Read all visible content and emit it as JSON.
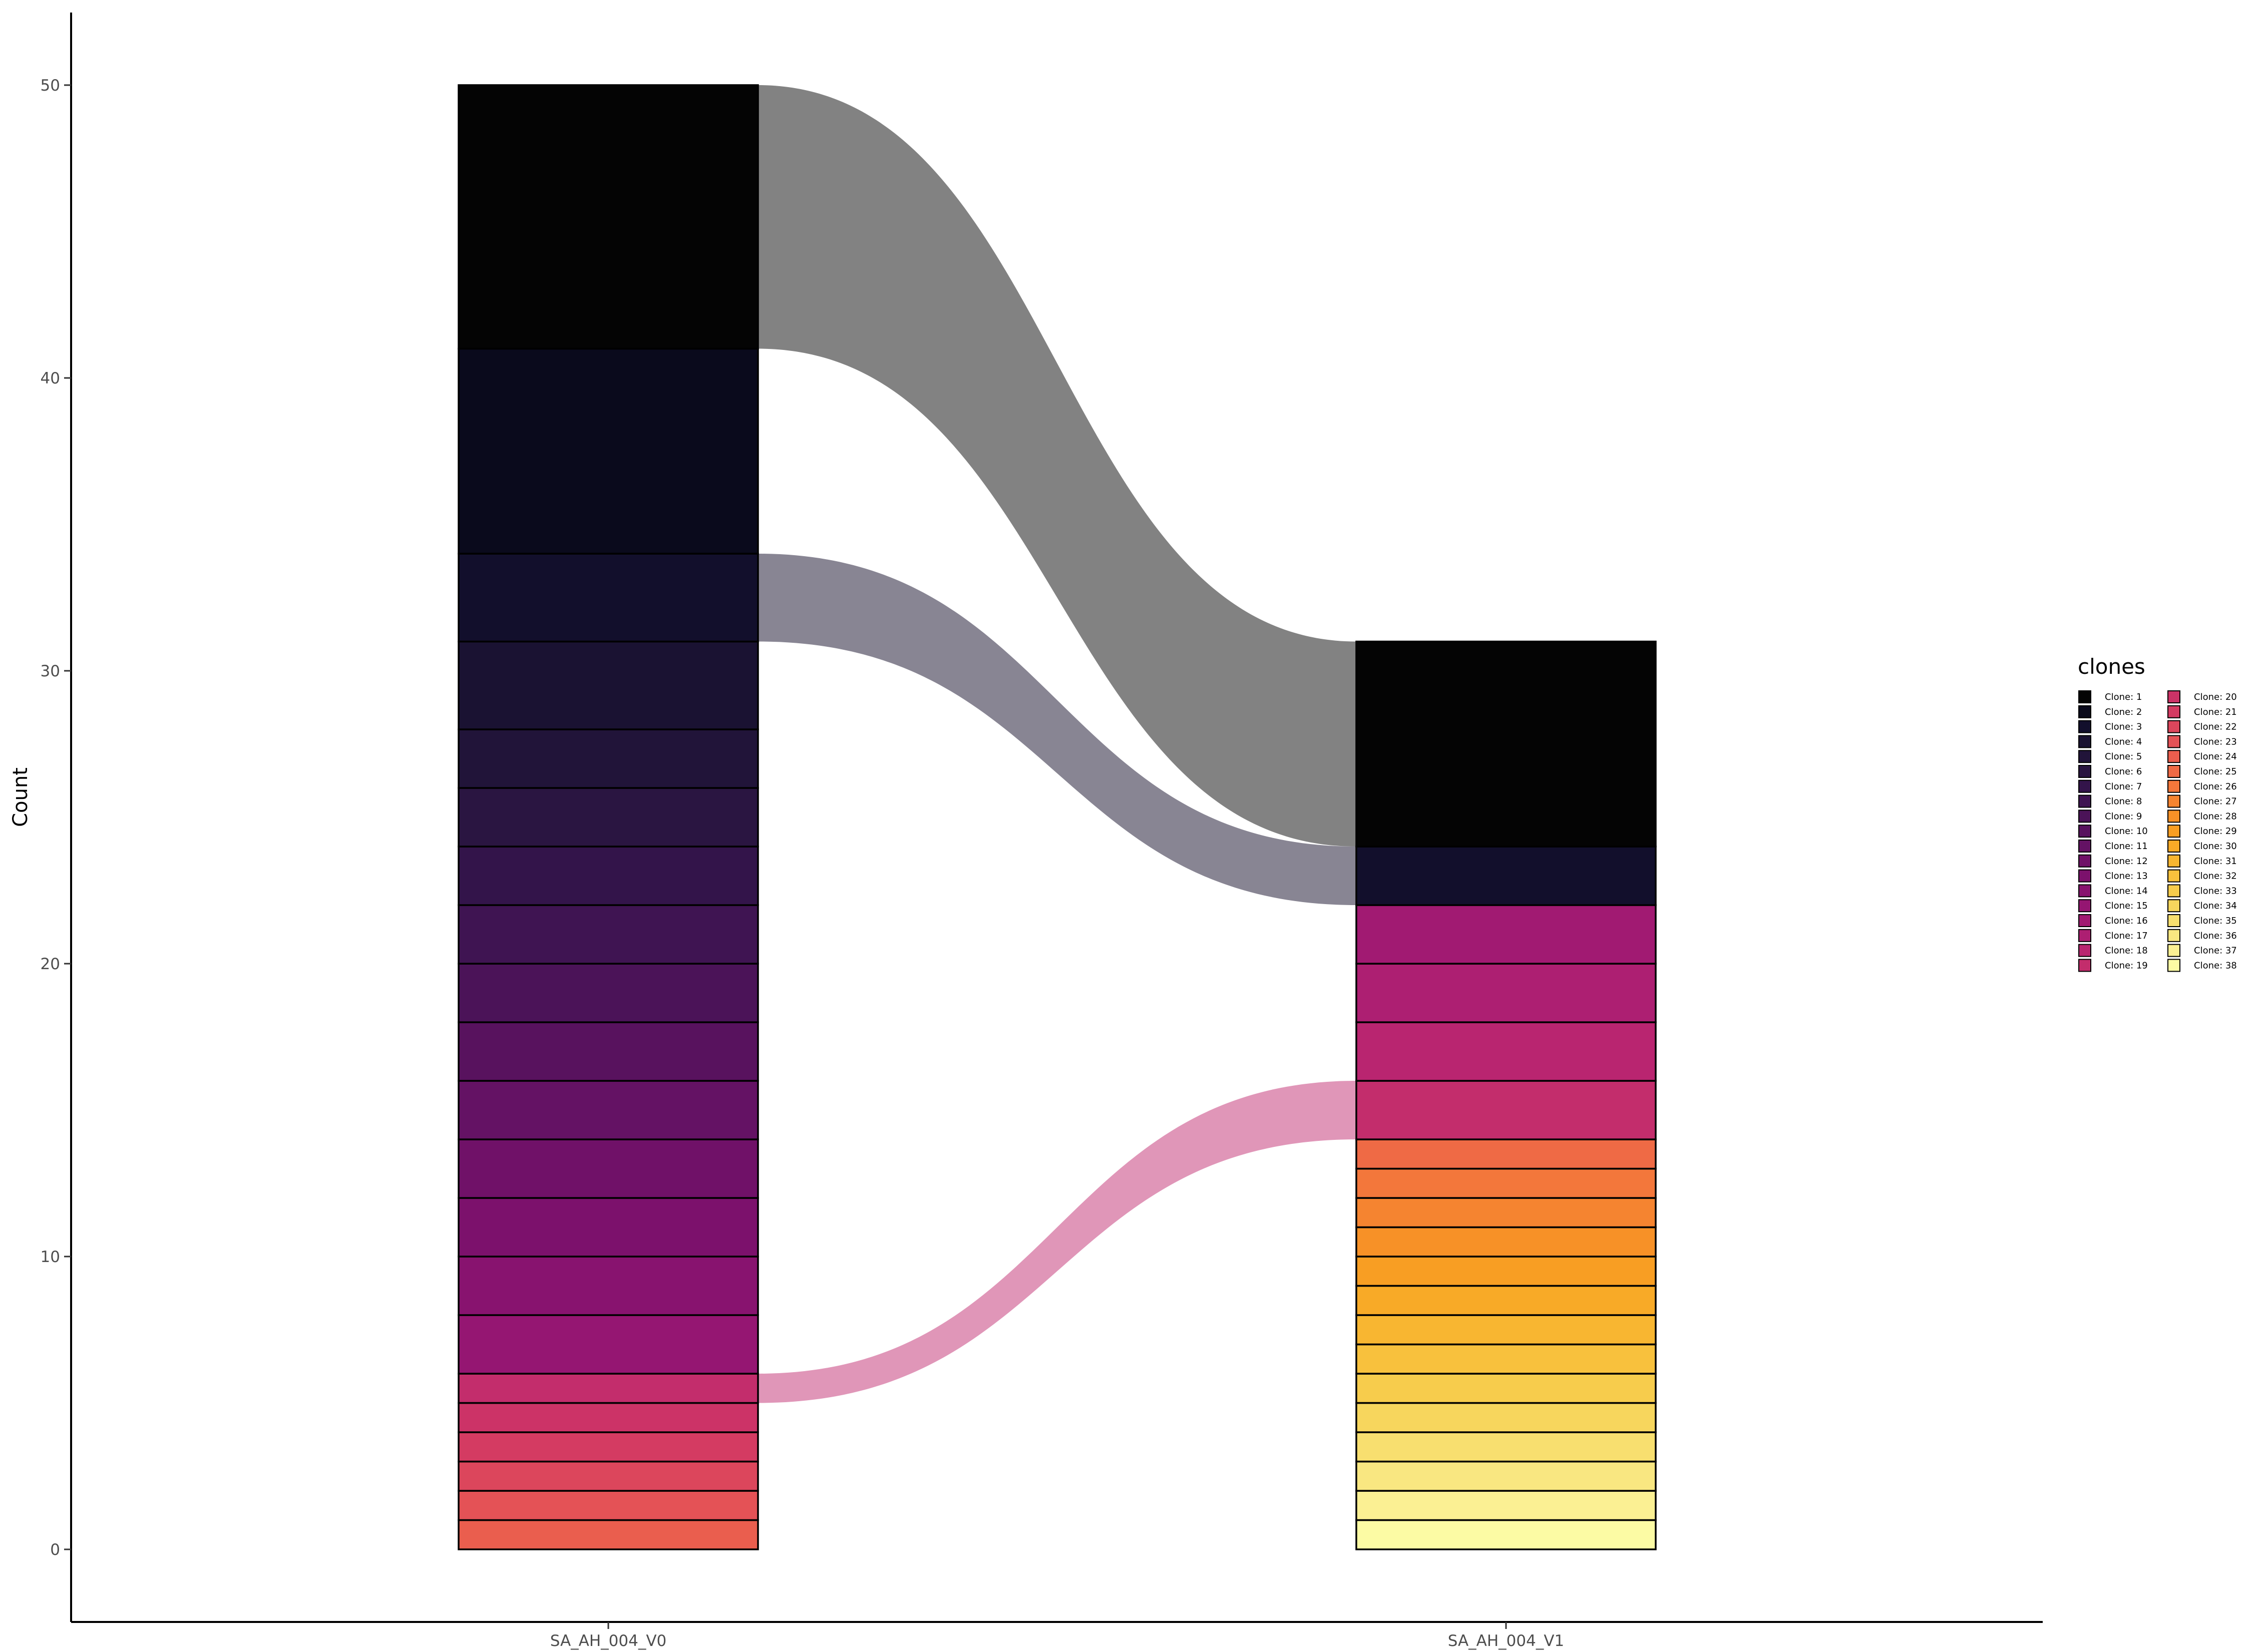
{
  "chart_data": {
    "type": "bar",
    "subtype": "alluvial",
    "ylabel": "Count",
    "xlabel": "",
    "ylim": [
      0,
      52.5
    ],
    "yticks": [
      0,
      10,
      20,
      30,
      40,
      50
    ],
    "grid": false,
    "legend_position": "right",
    "legend_title": "clones",
    "categories": [
      "SA_AH_004_V0",
      "SA_AH_004_V1"
    ],
    "clones": [
      {
        "name": "Clone: 1",
        "color": "#040404"
      },
      {
        "name": "Clone: 2",
        "color": "#0a0a1c"
      },
      {
        "name": "Clone: 3",
        "color": "#120f2c"
      },
      {
        "name": "Clone: 4",
        "color": "#1a1232"
      },
      {
        "name": "Clone: 5",
        "color": "#211439"
      },
      {
        "name": "Clone: 6",
        "color": "#2a1541"
      },
      {
        "name": "Clone: 7",
        "color": "#33144a"
      },
      {
        "name": "Clone: 8",
        "color": "#3f1452"
      },
      {
        "name": "Clone: 9",
        "color": "#4b1358"
      },
      {
        "name": "Clone: 10",
        "color": "#58125e"
      },
      {
        "name": "Clone: 11",
        "color": "#641264"
      },
      {
        "name": "Clone: 12",
        "color": "#701168"
      },
      {
        "name": "Clone: 13",
        "color": "#7c116c"
      },
      {
        "name": "Clone: 14",
        "color": "#88136f"
      },
      {
        "name": "Clone: 15",
        "color": "#951672"
      },
      {
        "name": "Clone: 16",
        "color": "#a11a72"
      },
      {
        "name": "Clone: 17",
        "color": "#ad1f72"
      },
      {
        "name": "Clone: 18",
        "color": "#b92570"
      },
      {
        "name": "Clone: 19",
        "color": "#c32d6c"
      },
      {
        "name": "Clone: 20",
        "color": "#cc3367"
      },
      {
        "name": "Clone: 21",
        "color": "#d43b62"
      },
      {
        "name": "Clone: 22",
        "color": "#dc465c"
      },
      {
        "name": "Clone: 23",
        "color": "#e45256"
      },
      {
        "name": "Clone: 24",
        "color": "#ea5e4e"
      },
      {
        "name": "Clone: 25",
        "color": "#ef6a45"
      },
      {
        "name": "Clone: 26",
        "color": "#f3773b"
      },
      {
        "name": "Clone: 27",
        "color": "#f58430"
      },
      {
        "name": "Clone: 28",
        "color": "#f79127"
      },
      {
        "name": "Clone: 29",
        "color": "#f89e23"
      },
      {
        "name": "Clone: 30",
        "color": "#f8aa27"
      },
      {
        "name": "Clone: 31",
        "color": "#f8b631"
      },
      {
        "name": "Clone: 32",
        "color": "#f8c13d"
      },
      {
        "name": "Clone: 33",
        "color": "#f7cc4c"
      },
      {
        "name": "Clone: 34",
        "color": "#f7d65d"
      },
      {
        "name": "Clone: 35",
        "color": "#f8df6f"
      },
      {
        "name": "Clone: 36",
        "color": "#f9e781"
      },
      {
        "name": "Clone: 37",
        "color": "#fbf093"
      },
      {
        "name": "Clone: 38",
        "color": "#fcfba4"
      }
    ],
    "stacks": [
      {
        "category": "SA_AH_004_V0",
        "segments": [
          {
            "clone": 1,
            "value": 9
          },
          {
            "clone": 2,
            "value": 7
          },
          {
            "clone": 3,
            "value": 3
          },
          {
            "clone": 4,
            "value": 3
          },
          {
            "clone": 5,
            "value": 2
          },
          {
            "clone": 6,
            "value": 2
          },
          {
            "clone": 7,
            "value": 2
          },
          {
            "clone": 8,
            "value": 2
          },
          {
            "clone": 9,
            "value": 2
          },
          {
            "clone": 10,
            "value": 2
          },
          {
            "clone": 11,
            "value": 2
          },
          {
            "clone": 12,
            "value": 2
          },
          {
            "clone": 13,
            "value": 2
          },
          {
            "clone": 14,
            "value": 2
          },
          {
            "clone": 15,
            "value": 2
          },
          {
            "clone": 19,
            "value": 1
          },
          {
            "clone": 20,
            "value": 1
          },
          {
            "clone": 21,
            "value": 1
          },
          {
            "clone": 22,
            "value": 1
          },
          {
            "clone": 23,
            "value": 1
          },
          {
            "clone": 24,
            "value": 1
          }
        ]
      },
      {
        "category": "SA_AH_004_V1",
        "segments": [
          {
            "clone": 1,
            "value": 7
          },
          {
            "clone": 3,
            "value": 2
          },
          {
            "clone": 16,
            "value": 2
          },
          {
            "clone": 17,
            "value": 2
          },
          {
            "clone": 18,
            "value": 2
          },
          {
            "clone": 19,
            "value": 2
          },
          {
            "clone": 25,
            "value": 1
          },
          {
            "clone": 26,
            "value": 1
          },
          {
            "clone": 27,
            "value": 1
          },
          {
            "clone": 28,
            "value": 1
          },
          {
            "clone": 29,
            "value": 1
          },
          {
            "clone": 30,
            "value": 1
          },
          {
            "clone": 31,
            "value": 1
          },
          {
            "clone": 32,
            "value": 1
          },
          {
            "clone": 33,
            "value": 1
          },
          {
            "clone": 34,
            "value": 1
          },
          {
            "clone": 35,
            "value": 1
          },
          {
            "clone": 36,
            "value": 1
          },
          {
            "clone": 37,
            "value": 1
          },
          {
            "clone": 38,
            "value": 1
          }
        ]
      }
    ],
    "flows": [
      {
        "clone": 1,
        "from": [
          41,
          50
        ],
        "to": [
          24,
          31
        ],
        "color": "#828282"
      },
      {
        "clone": 3,
        "from": [
          31,
          34
        ],
        "to": [
          22,
          24
        ],
        "color": "#888593"
      },
      {
        "clone": 19,
        "from": [
          5,
          6
        ],
        "to": [
          14,
          16
        ],
        "color": "#e096b8"
      }
    ]
  }
}
